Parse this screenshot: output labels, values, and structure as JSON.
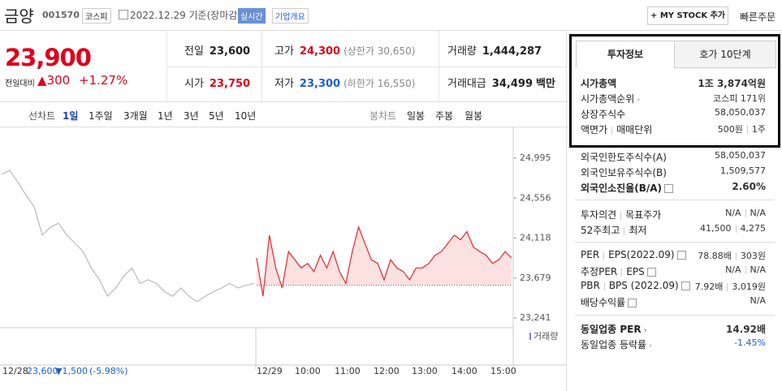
{
  "header": {
    "name": "금양",
    "code": "001570",
    "market": "코스피",
    "date": "2022.12.29 기준(장마감)",
    "realtime": "실시간",
    "company": "기업개요",
    "mystock": "+ MY STOCK 추가",
    "quick_order": "빠른주문"
  },
  "price": {
    "current": "23,900",
    "change_label": "전일대비",
    "change": "▲300",
    "rate": "+1.27%",
    "color": "#e0001b"
  },
  "summary": [
    [
      {
        "label": "전일",
        "value": "23,600",
        "color": "#222"
      },
      {
        "label": "고가",
        "value": "24,300",
        "sub": "(상한가 30,650)",
        "color": "#e0001b"
      },
      {
        "label": "거래량",
        "value": "1,444,287",
        "color": "#222"
      }
    ],
    [
      {
        "label": "시가",
        "value": "23,750",
        "color": "#e0001b"
      },
      {
        "label": "저가",
        "value": "23,300",
        "sub": "(하한가 16,550)",
        "color": "#1a5fd0"
      },
      {
        "label": "거래대금",
        "value": "34,499",
        "unit": "백만",
        "color": "#222"
      }
    ]
  ],
  "chart_tabs": {
    "line": "선차트",
    "periods": [
      "1일",
      "1주일",
      "3개월",
      "1년",
      "3년",
      "5년",
      "10년"
    ],
    "candle": "봉차트",
    "candle_periods": [
      "일봉",
      "주봉",
      "월봉"
    ]
  },
  "chart": {
    "type": "line",
    "ylim": [
      23241,
      24995
    ],
    "yticks": [
      {
        "value": 24995,
        "label": "24,995"
      },
      {
        "value": 24556,
        "label": "24,556"
      },
      {
        "value": 24118,
        "label": "24,118"
      },
      {
        "value": 23679,
        "label": "23,679"
      },
      {
        "value": 23241,
        "label": "23,241"
      }
    ],
    "base": 23600,
    "series": [
      {
        "color": "#b9b9b9",
        "values": [
          24820,
          24860,
          24730,
          24590,
          24460,
          24150,
          24240,
          24280,
          24150,
          24060,
          23970,
          23790,
          23660,
          23480,
          23570,
          23700,
          23790,
          23620,
          23660,
          23620,
          23530,
          23480,
          23570,
          23480,
          23420,
          23480,
          23530,
          23570,
          23620,
          23570,
          23600,
          23620
        ]
      },
      {
        "color": "#e8262b",
        "values": [
          23900,
          23480,
          24150,
          23790,
          23570,
          23970,
          23880,
          23790,
          23840,
          23750,
          23930,
          23790,
          23970,
          23750,
          23620,
          23970,
          24240,
          24060,
          23880,
          23840,
          23660,
          23880,
          23790,
          23750,
          23660,
          23790,
          23790,
          23840,
          23930,
          23970,
          24060,
          24150,
          24100,
          24190,
          24020,
          23970,
          23930,
          23840,
          23880,
          23970,
          23900
        ]
      }
    ],
    "categories": [
      "12/28",
      "12/29",
      "10:00",
      "11:00",
      "12:00",
      "13:00",
      "14:00",
      "15:00"
    ],
    "prev_info": {
      "price": "23,600",
      "change": "▼1,500",
      "rate": "(-5.98%)"
    },
    "volume_label": "거래량"
  },
  "info_tabs": [
    "투자정보",
    "호가 10단계"
  ],
  "info_groups": [
    [
      {
        "label": [
          "시가총액"
        ],
        "value": [
          "1조 3,874억원"
        ],
        "bold": true
      },
      {
        "label": [
          "시가총액순위"
        ],
        "link": true,
        "value": [
          "코스피 171위"
        ]
      },
      {
        "label": [
          "상장주식수"
        ],
        "value": [
          "58,050,037"
        ]
      },
      {
        "label": [
          "액면가",
          "매매단위"
        ],
        "value": [
          "500원",
          "1주"
        ]
      }
    ],
    [
      {
        "label": [
          "외국인한도주식수(A)"
        ],
        "value": [
          "58,050,037"
        ]
      },
      {
        "label": [
          "외국인보유주식수(B)"
        ],
        "value": [
          "1,509,577"
        ]
      },
      {
        "label": [
          "외국인소진율(B/A)"
        ],
        "help": true,
        "value": [
          "2.60%"
        ],
        "bold": true
      }
    ],
    [
      {
        "label": [
          "투자의견",
          "목표주가"
        ],
        "value": [
          "N/A",
          "N/A"
        ]
      },
      {
        "label": [
          "52주최고",
          "최저"
        ],
        "value": [
          "41,500",
          "4,275"
        ]
      }
    ],
    [
      {
        "label": [
          "PER",
          "EPS(2022.09)"
        ],
        "help": true,
        "value": [
          "78.88배",
          "303원"
        ]
      },
      {
        "label": [
          "추정PER",
          "EPS"
        ],
        "help": true,
        "value": [
          "N/A",
          "N/A"
        ]
      },
      {
        "label": [
          "PBR",
          "BPS (2022.09)"
        ],
        "help": true,
        "value": [
          "7.92배",
          "3,019원"
        ]
      },
      {
        "label": [
          "배당수익률"
        ],
        "help": true,
        "value": [
          "N/A"
        ]
      }
    ],
    [
      {
        "label": [
          "동일업종 PER"
        ],
        "link": true,
        "value": [
          "14.92배"
        ],
        "bold": true
      },
      {
        "label": [
          "동일업종 등락률"
        ],
        "link": true,
        "value": [
          "-1.45%"
        ],
        "color": "#1a5fd0"
      }
    ]
  ]
}
